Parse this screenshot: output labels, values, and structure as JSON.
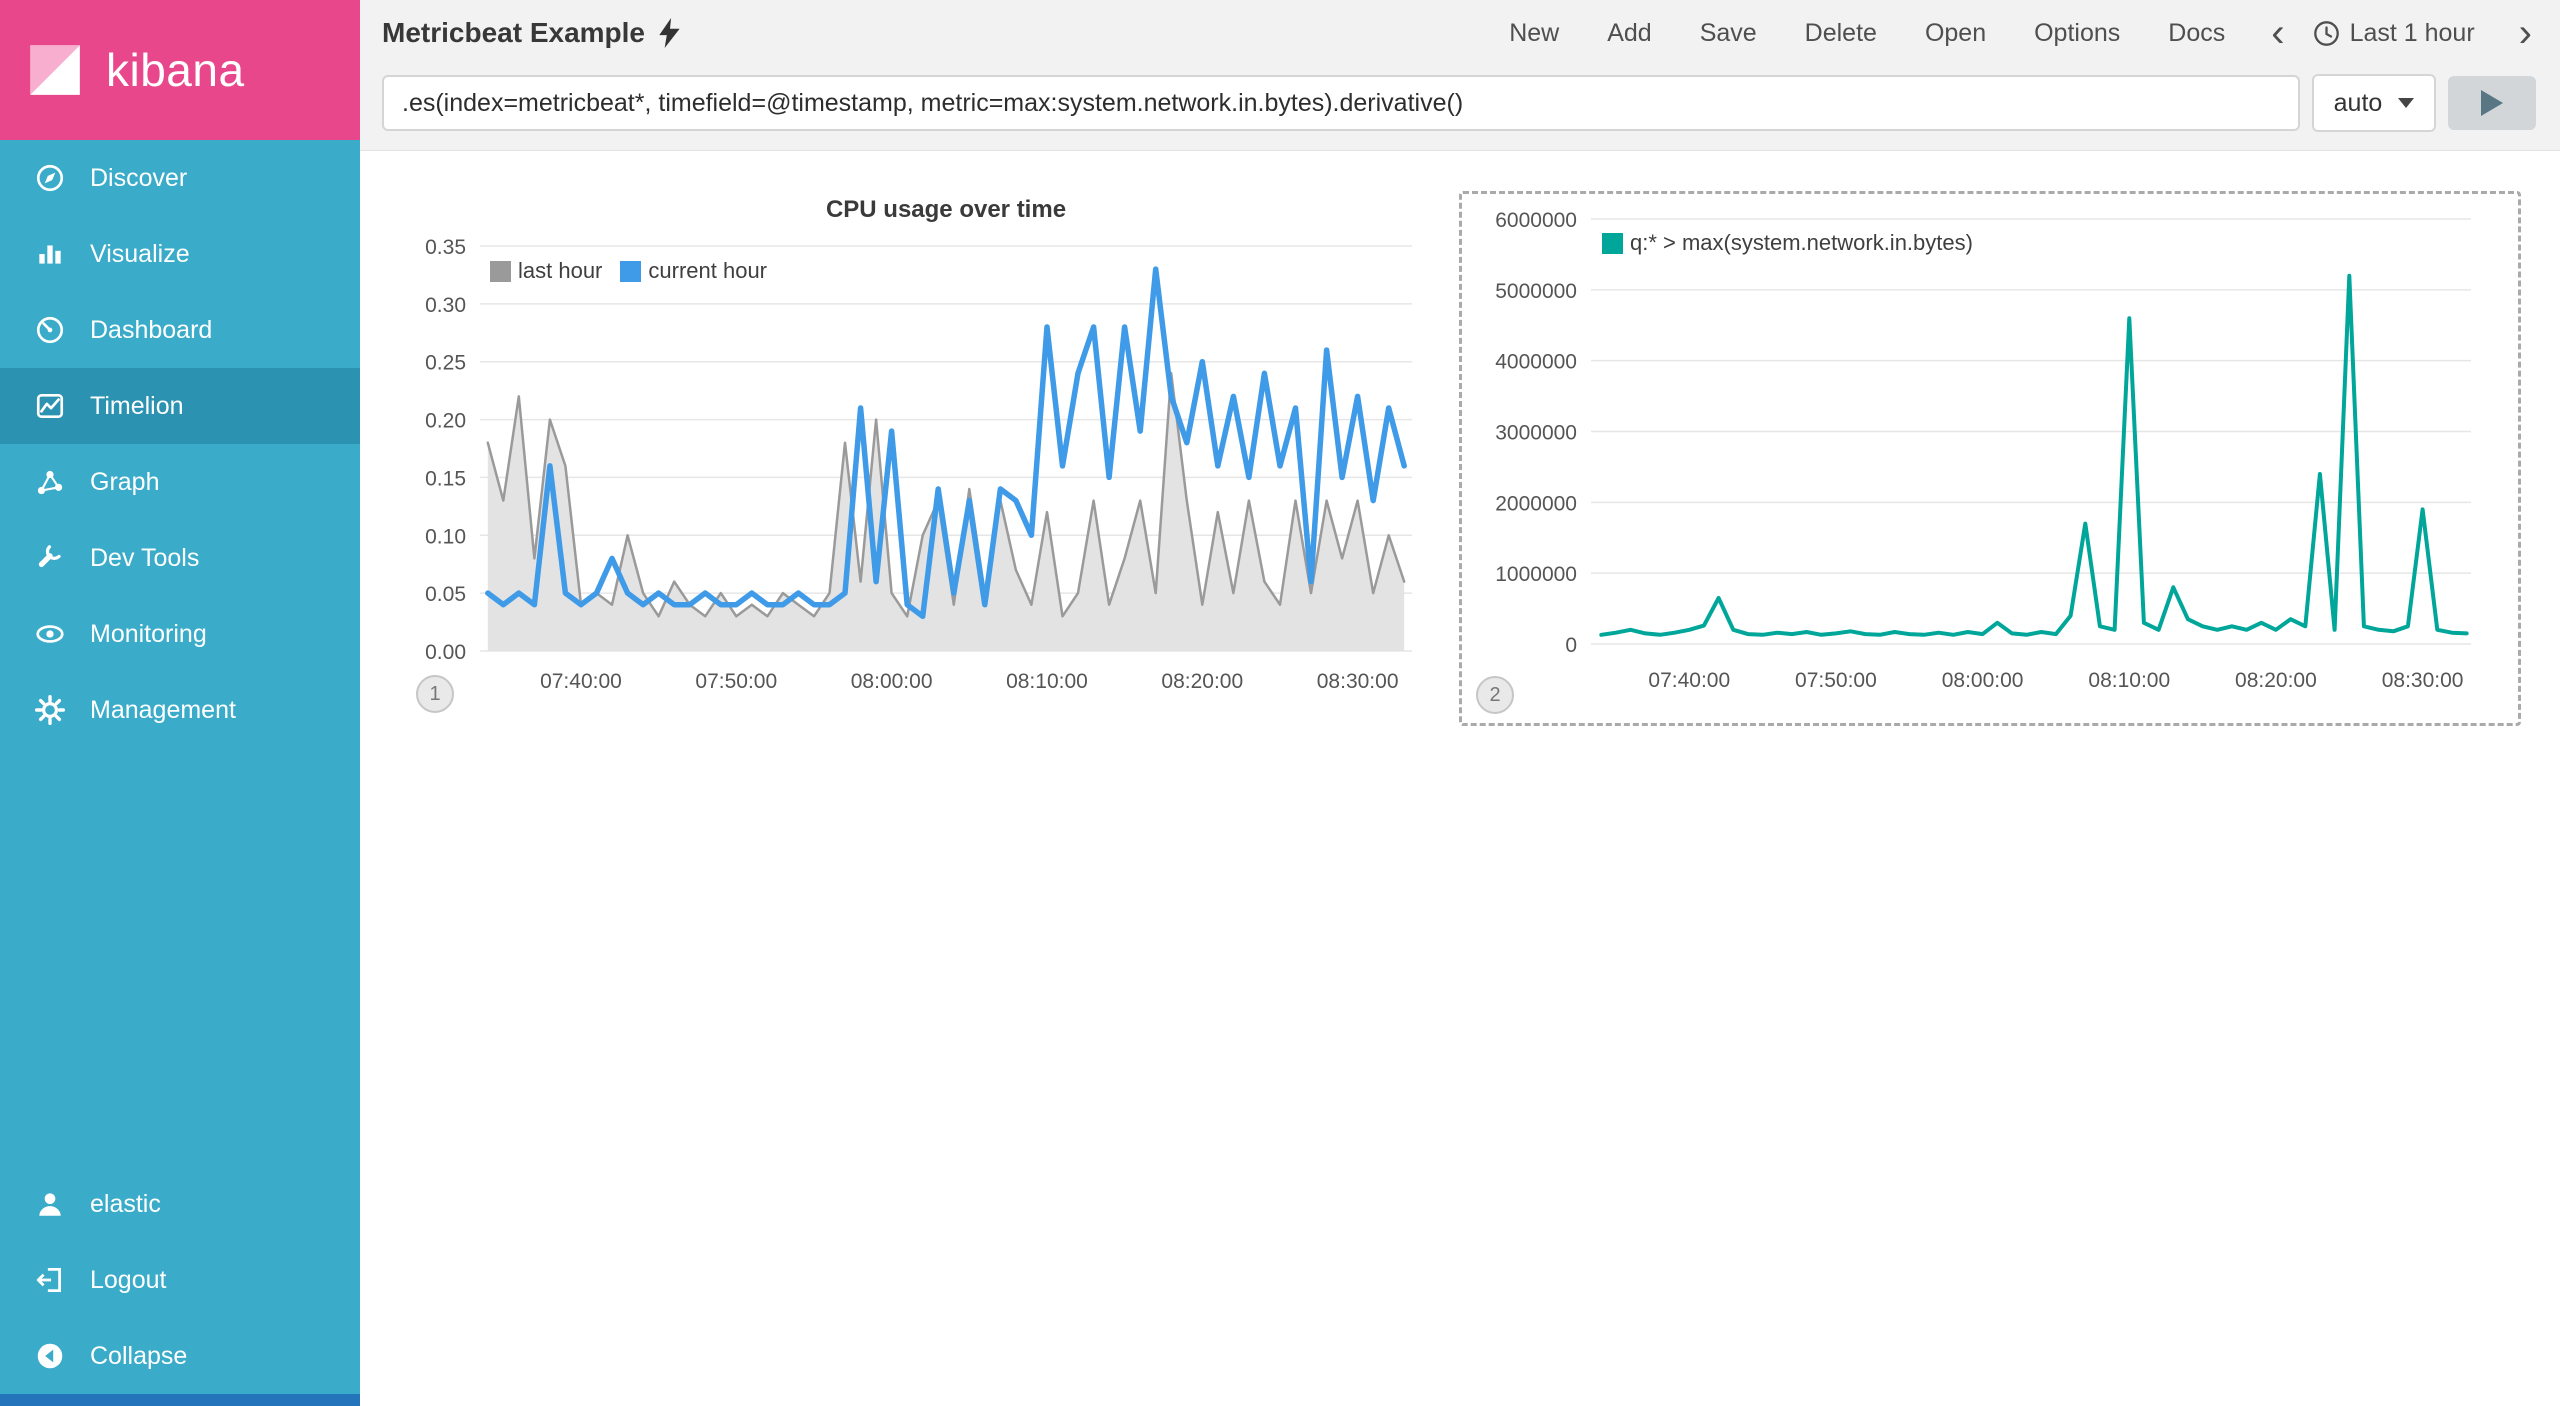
{
  "sidebar": {
    "logo_text": "kibana",
    "items": [
      {
        "label": "Discover",
        "icon": "compass-icon",
        "selected": false
      },
      {
        "label": "Visualize",
        "icon": "bar-chart-icon",
        "selected": false
      },
      {
        "label": "Dashboard",
        "icon": "gauge-icon",
        "selected": false
      },
      {
        "label": "Timelion",
        "icon": "timelion-icon",
        "selected": true
      },
      {
        "label": "Graph",
        "icon": "graph-nodes-icon",
        "selected": false
      },
      {
        "label": "Dev Tools",
        "icon": "wrench-icon",
        "selected": false
      },
      {
        "label": "Monitoring",
        "icon": "eye-icon",
        "selected": false
      },
      {
        "label": "Management",
        "icon": "gear-icon",
        "selected": false
      }
    ],
    "footer_items": [
      {
        "label": "elastic",
        "icon": "user-icon"
      },
      {
        "label": "Logout",
        "icon": "logout-icon"
      },
      {
        "label": "Collapse",
        "icon": "collapse-circle-icon"
      }
    ]
  },
  "topbar": {
    "title": "Metricbeat Example",
    "menu": [
      "New",
      "Add",
      "Save",
      "Delete",
      "Open",
      "Options",
      "Docs"
    ],
    "time_range": "Last 1 hour"
  },
  "querybar": {
    "query": ".es(index=metricbeat*, timefield=@timestamp, metric=max:system.network.in.bytes).derivative()",
    "interval": "auto"
  },
  "chart_data": [
    {
      "type": "area+line",
      "title": "CPU usage over time",
      "panel_number": "1",
      "x_ticks": [
        "07:40:00",
        "07:50:00",
        "08:00:00",
        "08:10:00",
        "08:20:00",
        "08:30:00"
      ],
      "x_tick_minutes": [
        460,
        470,
        480,
        490,
        500,
        510
      ],
      "x_domain_minutes": [
        453.5,
        513.5
      ],
      "x_start_minute": 454,
      "x_step_minutes": 1,
      "ylim": [
        0,
        0.35
      ],
      "y_ticks": [
        "0.00",
        "0.05",
        "0.10",
        "0.15",
        "0.20",
        "0.25",
        "0.30",
        "0.35"
      ],
      "grid": true,
      "legend_position": "top-left",
      "series": [
        {
          "name": "last hour",
          "type": "area",
          "color": "#9a9a9a",
          "fill": "#e3e3e3",
          "values": [
            0.18,
            0.13,
            0.22,
            0.08,
            0.2,
            0.16,
            0.04,
            0.05,
            0.04,
            0.1,
            0.05,
            0.03,
            0.06,
            0.04,
            0.03,
            0.05,
            0.03,
            0.04,
            0.03,
            0.05,
            0.04,
            0.03,
            0.05,
            0.18,
            0.06,
            0.2,
            0.05,
            0.03,
            0.1,
            0.13,
            0.04,
            0.14,
            0.05,
            0.13,
            0.07,
            0.04,
            0.12,
            0.03,
            0.05,
            0.13,
            0.04,
            0.08,
            0.13,
            0.05,
            0.24,
            0.13,
            0.04,
            0.12,
            0.05,
            0.13,
            0.06,
            0.04,
            0.13,
            0.05,
            0.13,
            0.08,
            0.13,
            0.05,
            0.1,
            0.06
          ]
        },
        {
          "name": "current hour",
          "type": "line",
          "color": "#3f9be8",
          "values": [
            0.05,
            0.04,
            0.05,
            0.04,
            0.16,
            0.05,
            0.04,
            0.05,
            0.08,
            0.05,
            0.04,
            0.05,
            0.04,
            0.04,
            0.05,
            0.04,
            0.04,
            0.05,
            0.04,
            0.04,
            0.05,
            0.04,
            0.04,
            0.05,
            0.21,
            0.06,
            0.19,
            0.04,
            0.03,
            0.14,
            0.05,
            0.13,
            0.04,
            0.14,
            0.13,
            0.1,
            0.28,
            0.16,
            0.24,
            0.28,
            0.15,
            0.28,
            0.19,
            0.33,
            0.22,
            0.18,
            0.25,
            0.16,
            0.22,
            0.15,
            0.24,
            0.16,
            0.21,
            0.06,
            0.26,
            0.15,
            0.22,
            0.13,
            0.21,
            0.16
          ]
        }
      ]
    },
    {
      "type": "line",
      "title": "",
      "panel_number": "2",
      "selected": true,
      "x_ticks": [
        "07:40:00",
        "07:50:00",
        "08:00:00",
        "08:10:00",
        "08:20:00",
        "08:30:00"
      ],
      "x_tick_minutes": [
        460,
        470,
        480,
        490,
        500,
        510
      ],
      "x_domain_minutes": [
        453.3,
        513.3
      ],
      "x_start_minute": 454,
      "x_step_minutes": 1,
      "ylim": [
        0,
        6000000
      ],
      "y_ticks": [
        "0",
        "1000000",
        "2000000",
        "3000000",
        "4000000",
        "5000000",
        "6000000"
      ],
      "grid": true,
      "legend_position": "top-left",
      "series": [
        {
          "name": "q:* > max(system.network.in.bytes)",
          "type": "line",
          "color": "#00a69a",
          "values": [
            130000,
            160000,
            200000,
            150000,
            130000,
            160000,
            200000,
            260000,
            650000,
            200000,
            140000,
            130000,
            160000,
            140000,
            170000,
            130000,
            150000,
            180000,
            140000,
            130000,
            170000,
            140000,
            130000,
            160000,
            130000,
            170000,
            140000,
            300000,
            150000,
            130000,
            170000,
            140000,
            400000,
            1700000,
            250000,
            200000,
            4600000,
            300000,
            200000,
            800000,
            350000,
            250000,
            200000,
            250000,
            200000,
            300000,
            200000,
            350000,
            250000,
            2400000,
            200000,
            5200000,
            250000,
            200000,
            180000,
            250000,
            1900000,
            200000,
            160000,
            150000
          ]
        }
      ]
    }
  ],
  "colors": {
    "brand_pink": "#e8478b",
    "sidebar_teal": "#3aabc9",
    "sidebar_selected": "#2b92b2",
    "series_blue": "#3f9be8",
    "series_gray": "#9a9a9a",
    "series_teal": "#00a69a"
  }
}
